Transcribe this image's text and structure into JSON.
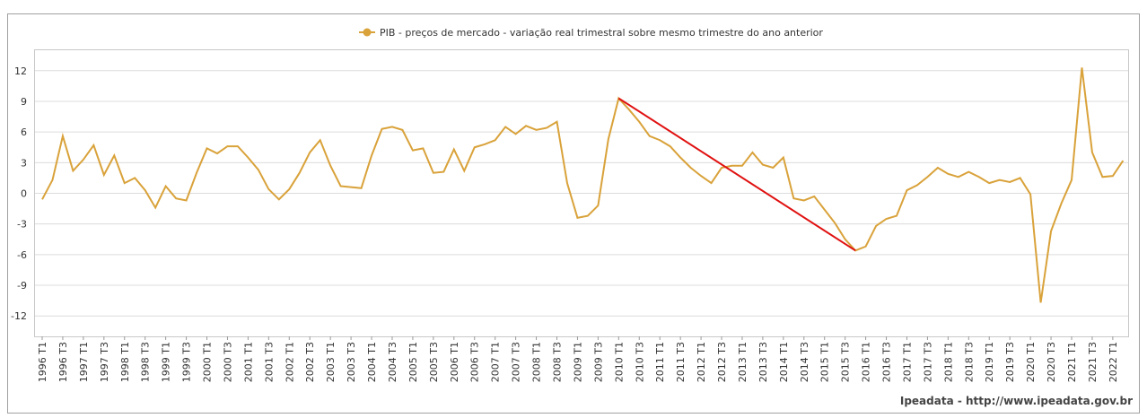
{
  "chart_data": {
    "type": "line",
    "legend": "PIB - preços de mercado - variação real trimestral sobre mesmo trimestre do ano anterior",
    "source": "Ipeadata - http://www.ipeadata.gov.br",
    "color": "#d9a23a",
    "annotation_color": "#e01010",
    "grid": true,
    "ylim": [
      -14,
      14
    ],
    "yticks": [
      -12,
      -9,
      -6,
      -3,
      0,
      3,
      6,
      9,
      12
    ],
    "categories": [
      "1996 T1",
      null,
      "1996 T3",
      null,
      "1997 T1",
      null,
      "1997 T3",
      null,
      "1998 T1",
      null,
      "1998 T3",
      null,
      "1999 T1",
      null,
      "1999 T3",
      null,
      "2000 T1",
      null,
      "2000 T3",
      null,
      "2001 T1",
      null,
      "2001 T3",
      null,
      "2002 T1",
      null,
      "2002 T3",
      null,
      "2003 T1",
      null,
      "2003 T3",
      null,
      "2004 T1",
      null,
      "2004 T3",
      null,
      "2005 T1",
      null,
      "2005 T3",
      null,
      "2006 T1",
      null,
      "2006 T3",
      null,
      "2007 T1",
      null,
      "2007 T3",
      null,
      "2008 T1",
      null,
      "2008 T3",
      null,
      "2009 T1",
      null,
      "2009 T3",
      null,
      "2010 T1",
      null,
      "2010 T3",
      null,
      "2011 T1",
      null,
      "2011 T3",
      null,
      "2012 T1",
      null,
      "2012 T3",
      null,
      "2013 T1",
      null,
      "2013 T3",
      null,
      "2014 T1",
      null,
      "2014 T3",
      null,
      "2015 T1",
      null,
      "2015 T3",
      null,
      "2016 T1",
      null,
      "2016 T3",
      null,
      "2017 T1",
      null,
      "2017 T3",
      null,
      "2018 T1",
      null,
      "2018 T3",
      null,
      "2019 T1",
      null,
      "2019 T3",
      null,
      "2020 T1",
      null,
      "2020 T3",
      null,
      "2021 T1",
      null,
      "2021 T3",
      null,
      "2022 T1",
      null
    ],
    "values": [
      -0.6,
      1.3,
      5.6,
      2.2,
      3.3,
      4.7,
      1.8,
      3.7,
      1.0,
      1.5,
      0.3,
      -1.4,
      0.7,
      -0.5,
      -0.7,
      2.0,
      4.4,
      3.9,
      4.6,
      4.6,
      3.5,
      2.3,
      0.4,
      -0.6,
      0.4,
      2.0,
      4.0,
      5.2,
      2.7,
      0.7,
      0.6,
      0.5,
      3.7,
      6.3,
      6.5,
      6.2,
      4.2,
      4.4,
      2.0,
      2.1,
      4.3,
      2.2,
      4.5,
      4.8,
      5.2,
      6.5,
      5.8,
      6.6,
      6.2,
      6.4,
      7.0,
      1.0,
      -2.4,
      -2.2,
      -1.2,
      5.3,
      9.3,
      8.2,
      7.0,
      5.6,
      5.2,
      4.6,
      3.5,
      2.5,
      1.7,
      1.0,
      2.5,
      2.7,
      2.7,
      4.0,
      2.8,
      2.5,
      3.5,
      -0.5,
      -0.7,
      -0.3,
      -1.6,
      -2.9,
      -4.5,
      -5.6,
      -5.2,
      -3.2,
      -2.5,
      -2.2,
      0.3,
      0.8,
      1.6,
      2.5,
      1.9,
      1.6,
      2.1,
      1.6,
      1.0,
      1.3,
      1.1,
      1.5,
      -0.1,
      -10.7,
      -3.7,
      -1.0,
      1.3,
      12.3,
      4.0,
      1.6,
      1.7,
      3.2
    ]
  }
}
